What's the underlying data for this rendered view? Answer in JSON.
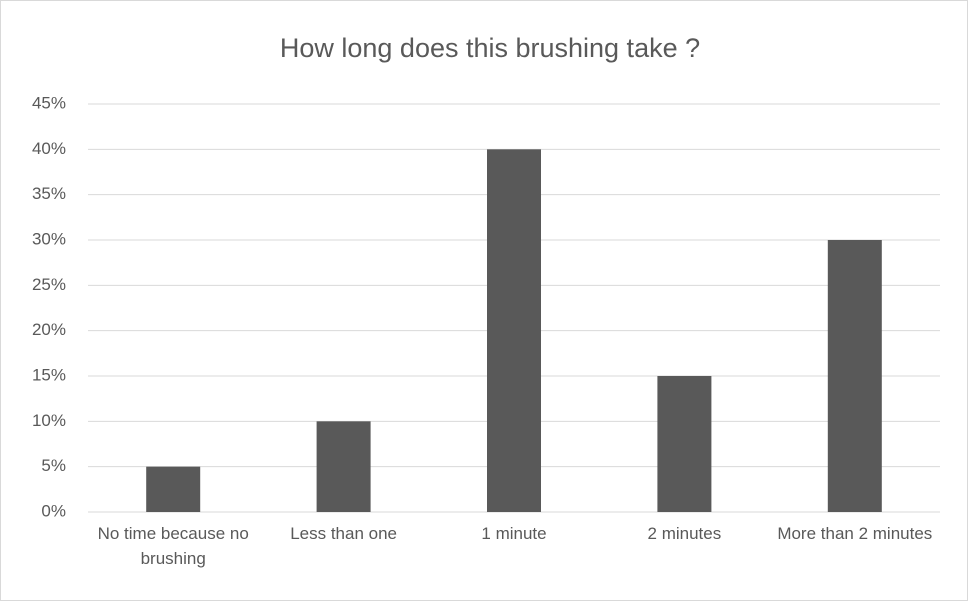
{
  "chart_data": {
    "type": "bar",
    "title": "How long does this brushing take ?",
    "categories": [
      "No time because no brushing",
      "Less than one",
      "1 minute",
      "2 minutes",
      "More than 2 minutes"
    ],
    "values": [
      5,
      10,
      40,
      15,
      30
    ],
    "color": "#595959",
    "ylim": [
      0,
      45
    ],
    "yticks": [
      {
        "value": 0,
        "label": "0%"
      },
      {
        "value": 5,
        "label": "5%"
      },
      {
        "value": 10,
        "label": "10%"
      },
      {
        "value": 15,
        "label": "15%"
      },
      {
        "value": 20,
        "label": "20%"
      },
      {
        "value": 25,
        "label": "25%"
      },
      {
        "value": 30,
        "label": "30%"
      },
      {
        "value": 35,
        "label": "35%"
      },
      {
        "value": 40,
        "label": "40%"
      },
      {
        "value": 45,
        "label": "45%"
      }
    ],
    "grid": true
  }
}
